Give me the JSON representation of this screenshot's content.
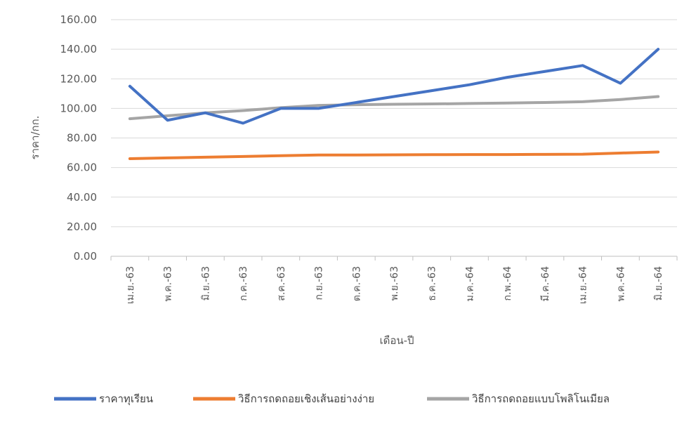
{
  "chart_data": {
    "type": "line",
    "title": "",
    "xlabel": "เดือน-ปี",
    "ylabel": "ราคา/กก.",
    "ylim": [
      0,
      160
    ],
    "y_ticks": [
      "0.00",
      "20.00",
      "40.00",
      "60.00",
      "80.00",
      "100.00",
      "120.00",
      "140.00",
      "160.00"
    ],
    "categories": [
      "เม.ย.-63",
      "พ.ค.-63",
      "มิ.ย.-63",
      "ก.ค.-63",
      "ส.ค.-63",
      "ก.ย.-63",
      "ต.ค.-63",
      "พ.ย.-63",
      "ธ.ค.-63",
      "ม.ค.-64",
      "ก.พ.-64",
      "มี.ค.-64",
      "เม.ย.-64",
      "พ.ค.-64",
      "มิ.ย.-64"
    ],
    "grid": "horizontal",
    "legend_position": "bottom",
    "series": [
      {
        "name": "ราคาทุเรียน",
        "color": "#4472c4",
        "values": [
          115,
          92,
          97,
          90,
          100,
          100,
          104,
          108,
          112,
          116,
          121,
          125,
          129,
          117,
          140
        ]
      },
      {
        "name": "วิธีการถดถอยเชิงเส้นอย่างง่าย",
        "color": "#ed7d31",
        "values": [
          66,
          66.5,
          67,
          67.5,
          68,
          68.5,
          68.5,
          68.6,
          68.7,
          68.8,
          68.8,
          68.9,
          69,
          69.8,
          70.5
        ]
      },
      {
        "name": "วิธีการถดถอยแบบโพลิโนเมียล",
        "color": "#a5a5a5",
        "values": [
          93,
          95,
          97,
          98.5,
          100.5,
          102,
          102.5,
          102.8,
          103,
          103.3,
          103.6,
          104,
          104.5,
          106,
          108
        ]
      }
    ]
  }
}
